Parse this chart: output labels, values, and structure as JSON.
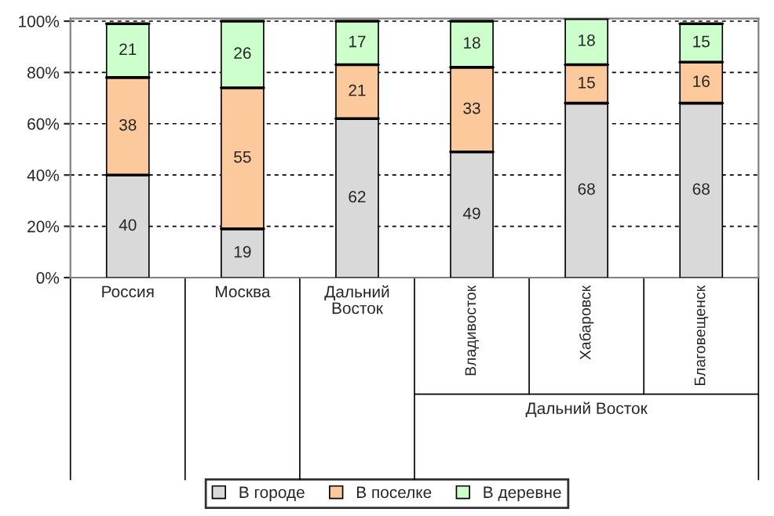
{
  "chart_data": {
    "type": "bar",
    "stacked": true,
    "categories": [
      "Россия",
      "Москва",
      "Дальний Восток",
      "Владивосток",
      "Хабаровск",
      "Благовещенск"
    ],
    "series": [
      {
        "name": "В городе",
        "color": "#d9d9d9",
        "values": [
          40,
          19,
          62,
          49,
          68,
          68
        ]
      },
      {
        "name": "В поселке",
        "color": "#fbc99b",
        "values": [
          38,
          55,
          21,
          33,
          15,
          16
        ]
      },
      {
        "name": "В деревне",
        "color": "#ccffcc",
        "values": [
          21,
          26,
          17,
          18,
          18,
          15
        ]
      }
    ],
    "ylim": [
      0,
      101
    ],
    "yticks": [
      {
        "value": 0,
        "label": "0%"
      },
      {
        "value": 20,
        "label": "20%"
      },
      {
        "value": 40,
        "label": "40%"
      },
      {
        "value": 60,
        "label": "60%"
      },
      {
        "value": 80,
        "label": "80%"
      },
      {
        "value": 100,
        "label": "100%"
      }
    ],
    "grid": "y",
    "data_labels": true,
    "legend": "bottom",
    "annotations": [
      "Дальний Восток"
    ]
  }
}
